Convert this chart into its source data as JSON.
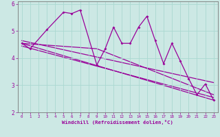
{
  "xlabel": "Windchill (Refroidissement éolien,°C)",
  "background_color": "#cce8e4",
  "grid_color": "#aad8d0",
  "line_color": "#990099",
  "xlim": [
    -0.5,
    23.5
  ],
  "ylim": [
    2,
    6.1
  ],
  "yticks": [
    2,
    3,
    4,
    5,
    6
  ],
  "xticks": [
    0,
    1,
    2,
    3,
    4,
    5,
    6,
    7,
    8,
    9,
    10,
    11,
    12,
    13,
    14,
    15,
    16,
    17,
    18,
    19,
    20,
    21,
    22,
    23
  ],
  "data_x": [
    0,
    1,
    3,
    5,
    6,
    7,
    9,
    10,
    11,
    12,
    13,
    14,
    15,
    16,
    17,
    18,
    19,
    20,
    21,
    22,
    23
  ],
  "data_y": [
    4.55,
    4.35,
    5.05,
    5.7,
    5.65,
    5.78,
    3.75,
    4.35,
    5.15,
    4.55,
    4.55,
    5.15,
    5.55,
    4.65,
    3.8,
    4.55,
    3.9,
    3.25,
    2.65,
    3.05,
    2.45
  ],
  "trend1_x": [
    0,
    23
  ],
  "trend1_y": [
    4.55,
    2.45
  ],
  "trend2_x": [
    0,
    9,
    23
  ],
  "trend2_y": [
    4.55,
    4.35,
    2.65
  ],
  "trend3_x": [
    0,
    23
  ],
  "trend3_y": [
    4.65,
    3.1
  ],
  "trend4_x": [
    0,
    23
  ],
  "trend4_y": [
    4.45,
    2.55
  ]
}
